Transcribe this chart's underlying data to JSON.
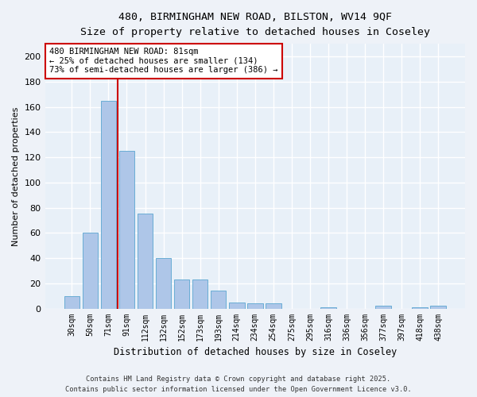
{
  "title1": "480, BIRMINGHAM NEW ROAD, BILSTON, WV14 9QF",
  "title2": "Size of property relative to detached houses in Coseley",
  "xlabel": "Distribution of detached houses by size in Coseley",
  "ylabel": "Number of detached properties",
  "categories": [
    "30sqm",
    "50sqm",
    "71sqm",
    "91sqm",
    "112sqm",
    "132sqm",
    "152sqm",
    "173sqm",
    "193sqm",
    "214sqm",
    "234sqm",
    "254sqm",
    "275sqm",
    "295sqm",
    "316sqm",
    "336sqm",
    "356sqm",
    "377sqm",
    "397sqm",
    "418sqm",
    "438sqm"
  ],
  "values": [
    10,
    60,
    165,
    125,
    75,
    40,
    23,
    23,
    14,
    5,
    4,
    4,
    0,
    0,
    1,
    0,
    0,
    2,
    0,
    1,
    2
  ],
  "bar_color": "#aec6e8",
  "bar_edge_color": "#6aadd5",
  "vline_color": "#cc0000",
  "vline_x": 2.5,
  "annotation_text": "480 BIRMINGHAM NEW ROAD: 81sqm\n← 25% of detached houses are smaller (134)\n73% of semi-detached houses are larger (386) →",
  "annotation_box_color": "#ffffff",
  "annotation_box_edge_color": "#cc0000",
  "ylim": [
    0,
    210
  ],
  "yticks": [
    0,
    20,
    40,
    60,
    80,
    100,
    120,
    140,
    160,
    180,
    200
  ],
  "bg_color": "#e8f0f8",
  "fig_color": "#eef2f8",
  "grid_color": "#ffffff",
  "footer1": "Contains HM Land Registry data © Crown copyright and database right 2025.",
  "footer2": "Contains public sector information licensed under the Open Government Licence v3.0."
}
